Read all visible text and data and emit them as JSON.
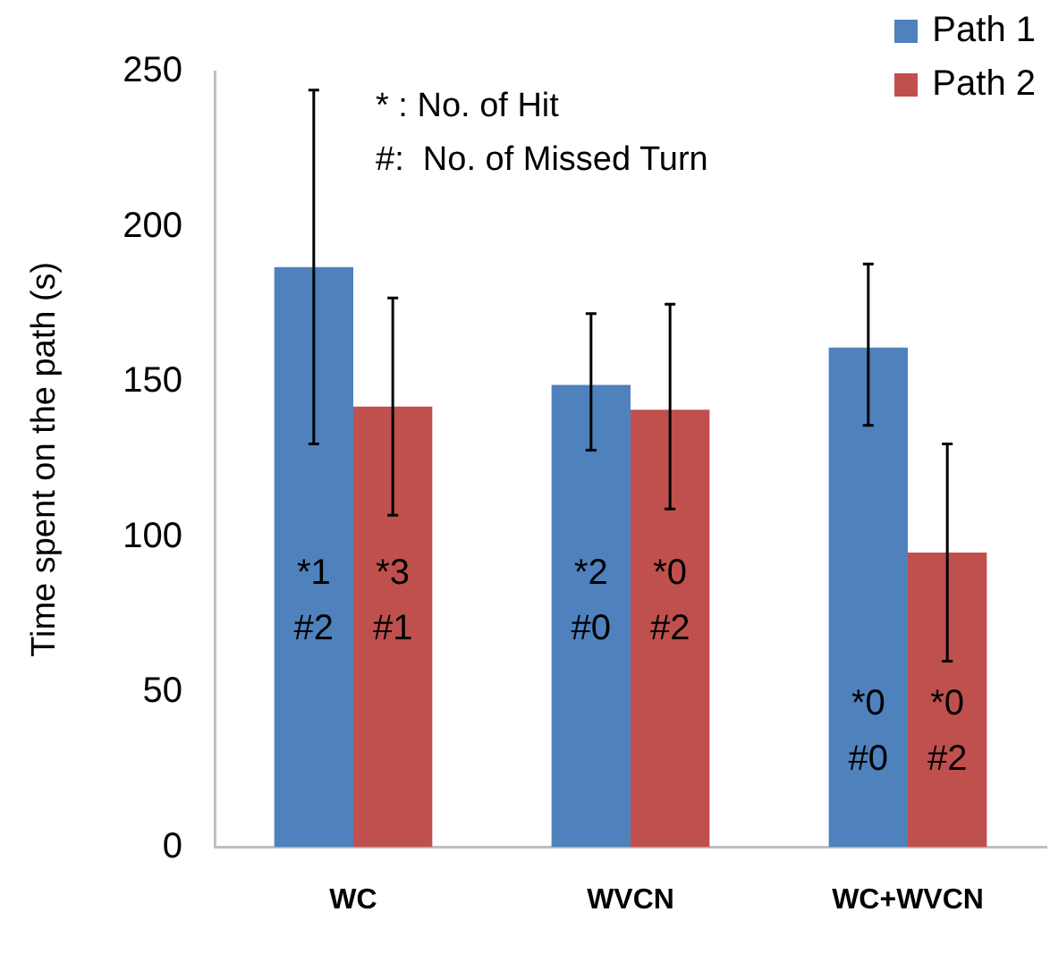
{
  "chart_data": {
    "type": "bar",
    "ylabel": "Time spent on the path (s)",
    "categories": [
      "WC",
      "WVCN",
      "WC+WVCN"
    ],
    "series": [
      {
        "name": "Path 1",
        "color": "#4f81bd",
        "values": [
          187,
          149,
          161
        ],
        "errors": [
          [
            130,
            244
          ],
          [
            128,
            172
          ],
          [
            136,
            188
          ]
        ]
      },
      {
        "name": "Path 2",
        "color": "#c0504d",
        "values": [
          142,
          141,
          95
        ],
        "errors": [
          [
            107,
            177
          ],
          [
            109,
            175
          ],
          [
            60,
            130
          ]
        ]
      }
    ],
    "ylim": [
      0,
      250
    ],
    "yticks": [
      0,
      50,
      100,
      150,
      200,
      250
    ],
    "grid": false,
    "legend": "top right",
    "annotations": [
      "* : No. of Hit",
      "#:  No. of Missed Turn",
      {
        "text": "*1\n#2",
        "x": "WC",
        "y": 88
      },
      {
        "text": "*3\n#1",
        "x": "WC",
        "y": 88
      },
      {
        "text": "*2\n#0",
        "x": "WVCN",
        "y": 88
      },
      {
        "text": "*0\n#2",
        "x": "WVCN",
        "y": 88
      },
      {
        "text": "*0\n#0",
        "x": "WC+WVCN",
        "y": 46
      },
      {
        "text": "*0\n#2",
        "x": "WC+WVCN",
        "y": 46
      }
    ]
  }
}
